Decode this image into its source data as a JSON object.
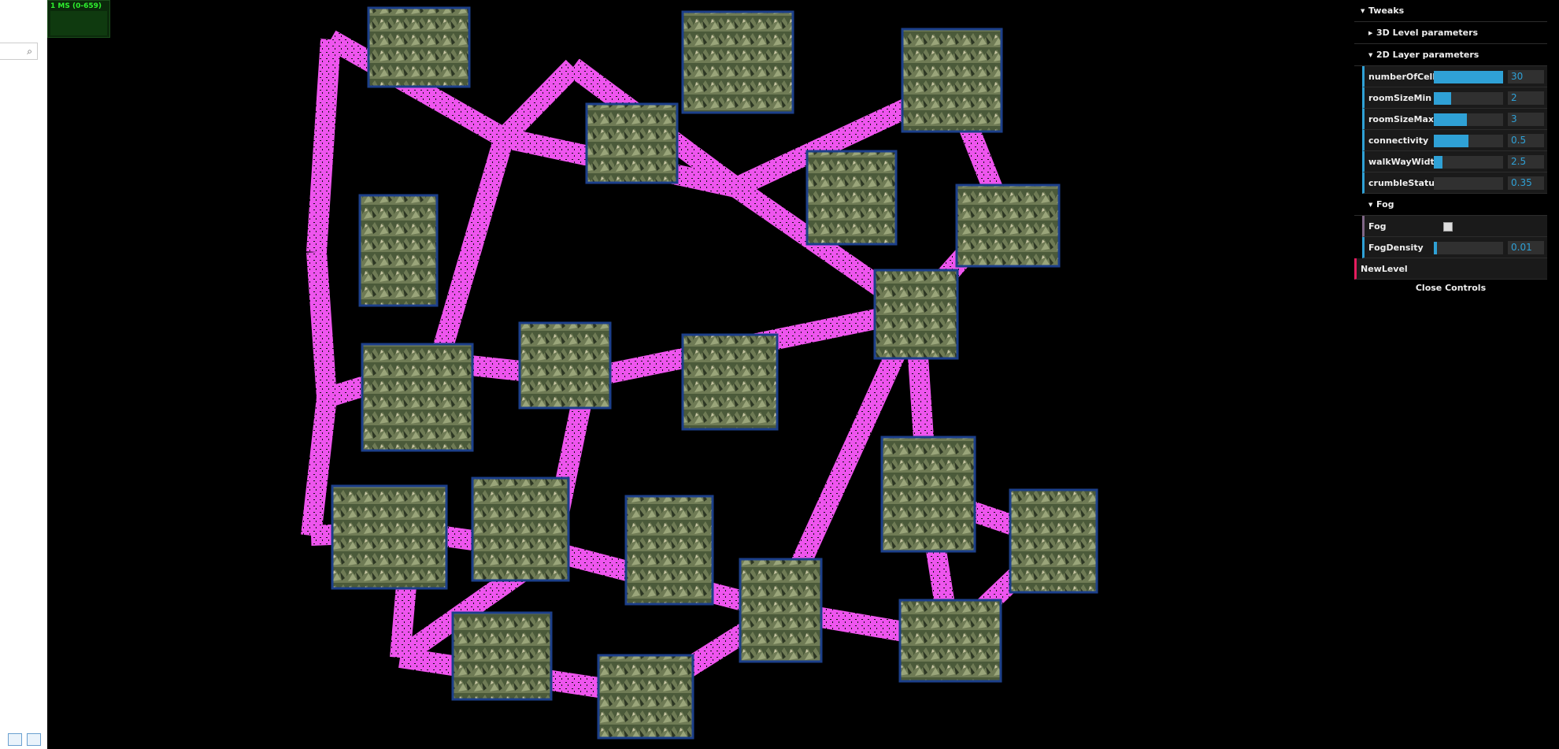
{
  "stats": {
    "label": "1 MS (0-659)"
  },
  "left_panel": {
    "search_icon": "search-icon",
    "icons": [
      "details-view-icon",
      "image-view-icon"
    ]
  },
  "scene": {
    "walkway_color": "#ee55ee",
    "room_color": "#5c6b45",
    "room_edge_color": "#1c3f8a"
  },
  "gui": {
    "title": "Tweaks",
    "folders": {
      "level3d": "3D Level parameters",
      "layer2d": "2D Layer parameters",
      "fog": "Fog"
    },
    "params": [
      {
        "name": "numberOfCells",
        "value": "30",
        "fill": 1.0
      },
      {
        "name": "roomSizeMin",
        "value": "2",
        "fill": 0.25
      },
      {
        "name": "roomSizeMax",
        "value": "3",
        "fill": 0.48
      },
      {
        "name": "connectivity",
        "value": "0.5",
        "fill": 0.5
      },
      {
        "name": "walkWayWidth",
        "value": "2.5",
        "fill": 0.12
      },
      {
        "name": "crumbleStatus",
        "value": "0.35",
        "fill": 0.0
      }
    ],
    "fog": {
      "fog_label": "Fog",
      "fog_checked": false,
      "density_label": "FogDensity",
      "density_value": "0.01",
      "density_fill": 0.04
    },
    "new_level": "NewLevel",
    "close": "Close Controls",
    "accent": "#2fa1d6"
  }
}
